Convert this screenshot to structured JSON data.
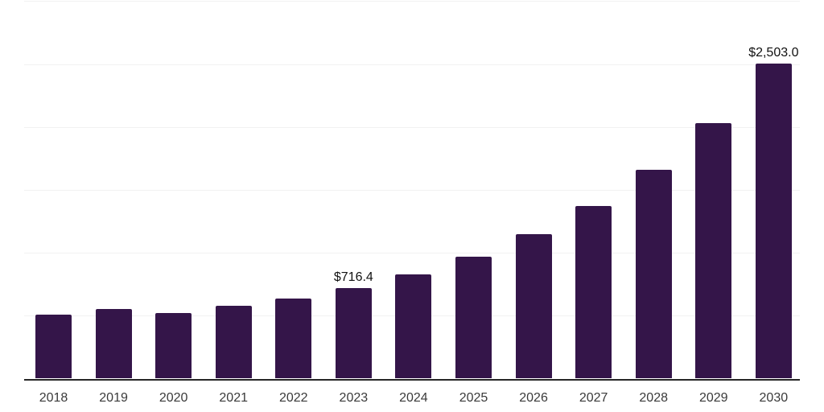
{
  "page": {
    "background": "#ffffff"
  },
  "chart_data": {
    "type": "bar",
    "title": "",
    "xlabel": "",
    "ylabel": "",
    "categories": [
      "2018",
      "2019",
      "2020",
      "2021",
      "2022",
      "2023",
      "2024",
      "2025",
      "2026",
      "2027",
      "2028",
      "2029",
      "2030"
    ],
    "values": [
      510.0,
      551.0,
      521.0,
      580.0,
      634.0,
      716.4,
      829.0,
      970.0,
      1147.0,
      1369.0,
      1658.0,
      2027.0,
      2503.0
    ],
    "annotations": [
      {
        "category": "2023",
        "label": "$716.4"
      },
      {
        "category": "2030",
        "label": "$2,503.0"
      }
    ],
    "ylim": [
      0,
      3000
    ],
    "grid_step": 500,
    "grid": true,
    "legend": false,
    "colors": {
      "bar": "#341549",
      "axis": "#262626",
      "gridline": "#f2f2f2",
      "tick_label": "#3a3a3a",
      "data_label": "#111111"
    }
  }
}
